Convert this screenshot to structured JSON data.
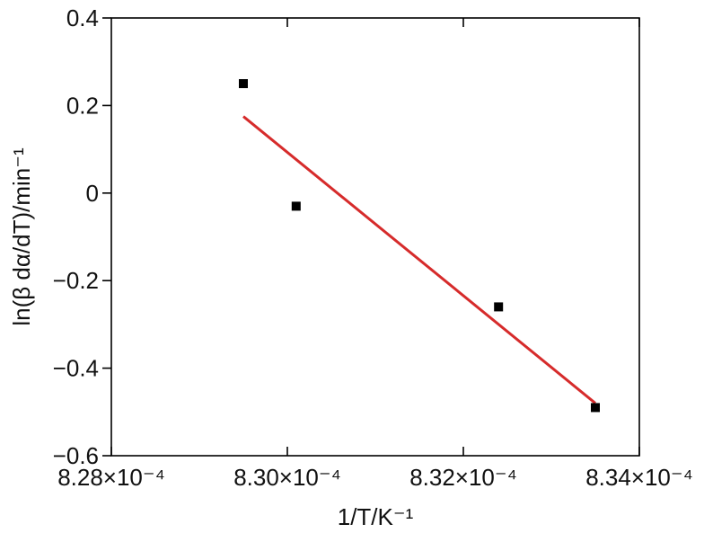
{
  "chart_data": {
    "type": "scatter",
    "title": "",
    "xlabel": "1/T/K⁻¹",
    "ylabel": "ln(β dα/dT)/min⁻¹",
    "xlim": [
      0.000828,
      0.000834
    ],
    "ylim": [
      -0.6,
      0.4
    ],
    "x_ticks": [
      0.000828,
      0.00083,
      0.000832,
      0.000834
    ],
    "x_tick_labels": [
      "8.28×10⁻⁴",
      "8.30×10⁻⁴",
      "8.32×10⁻⁴",
      "8.34×10⁻⁴"
    ],
    "y_ticks": [
      -0.6,
      -0.4,
      -0.2,
      0,
      0.2,
      0.4
    ],
    "y_tick_labels": [
      "−0.6",
      "−0.4",
      "−0.2",
      "0",
      "0.2",
      "0.4"
    ],
    "grid": false,
    "points": [
      {
        "x": 0.0008295,
        "y": 0.25
      },
      {
        "x": 0.0008301,
        "y": -0.03
      },
      {
        "x": 0.0008324,
        "y": -0.26
      },
      {
        "x": 0.0008335,
        "y": -0.49
      }
    ],
    "fit_line": {
      "x": [
        0.0008295,
        0.0008335
      ],
      "y": [
        0.175,
        -0.48
      ]
    },
    "colors": {
      "points": "#000000",
      "fit_line": "#d62b2b",
      "axes": "#000000"
    }
  }
}
